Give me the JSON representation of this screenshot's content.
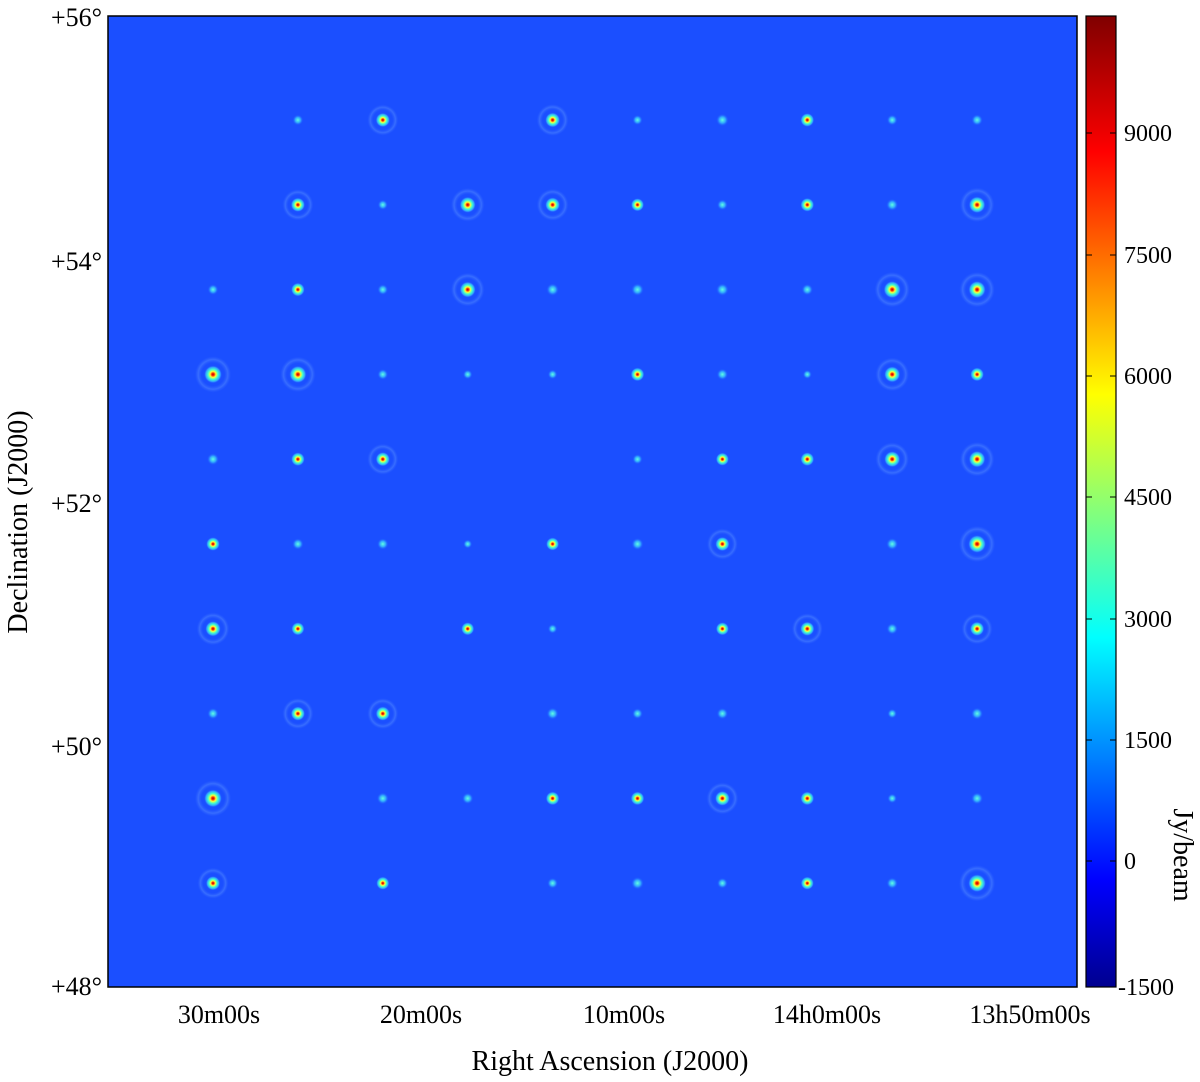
{
  "axes": {
    "xlabel": "Right Ascension (J2000)",
    "ylabel": "Declination (J2000)",
    "x_ticks": [
      "30m00s",
      "20m00s",
      "10m00s",
      "14h0m00s",
      "13h50m00s"
    ],
    "y_ticks": [
      "+56°",
      "+54°",
      "+52°",
      "+50°",
      "+48°"
    ]
  },
  "colorbar": {
    "label": "Jy/beam",
    "ticks": [
      "9000",
      "7500",
      "6000",
      "4500",
      "3000",
      "1500",
      "0",
      "-1500"
    ],
    "min": -1500,
    "max": 10500,
    "colormap": "jet"
  },
  "image": {
    "background_color": "#1b4fff",
    "frame_color": "#000000"
  },
  "sources": {
    "grid_cols": 10,
    "grid_rows": 10,
    "intensity_rows": [
      [
        0.0,
        0.25,
        0.55,
        0.0,
        0.6,
        0.2,
        0.4,
        0.5,
        0.25,
        0.3
      ],
      [
        0.0,
        0.55,
        0.2,
        0.7,
        0.6,
        0.45,
        0.25,
        0.5,
        0.35,
        0.75
      ],
      [
        0.25,
        0.5,
        0.25,
        0.7,
        0.4,
        0.4,
        0.4,
        0.3,
        0.8,
        0.8
      ],
      [
        0.85,
        0.8,
        0.25,
        0.15,
        0.15,
        0.5,
        0.3,
        0.1,
        0.7,
        0.5
      ],
      [
        0.35,
        0.5,
        0.55,
        0.0,
        0.0,
        0.2,
        0.45,
        0.5,
        0.7,
        0.75
      ],
      [
        0.5,
        0.3,
        0.3,
        0.1,
        0.45,
        0.35,
        0.55,
        0.0,
        0.35,
        0.85
      ],
      [
        0.65,
        0.45,
        0.0,
        0.45,
        0.15,
        0.0,
        0.45,
        0.55,
        0.3,
        0.55
      ],
      [
        0.3,
        0.55,
        0.55,
        0.0,
        0.35,
        0.25,
        0.3,
        0.0,
        0.15,
        0.35
      ],
      [
        0.85,
        0.0,
        0.35,
        0.3,
        0.5,
        0.5,
        0.6,
        0.5,
        0.15,
        0.35
      ],
      [
        0.55,
        0.0,
        0.45,
        0.0,
        0.25,
        0.4,
        0.25,
        0.45,
        0.3,
        0.85
      ]
    ]
  }
}
